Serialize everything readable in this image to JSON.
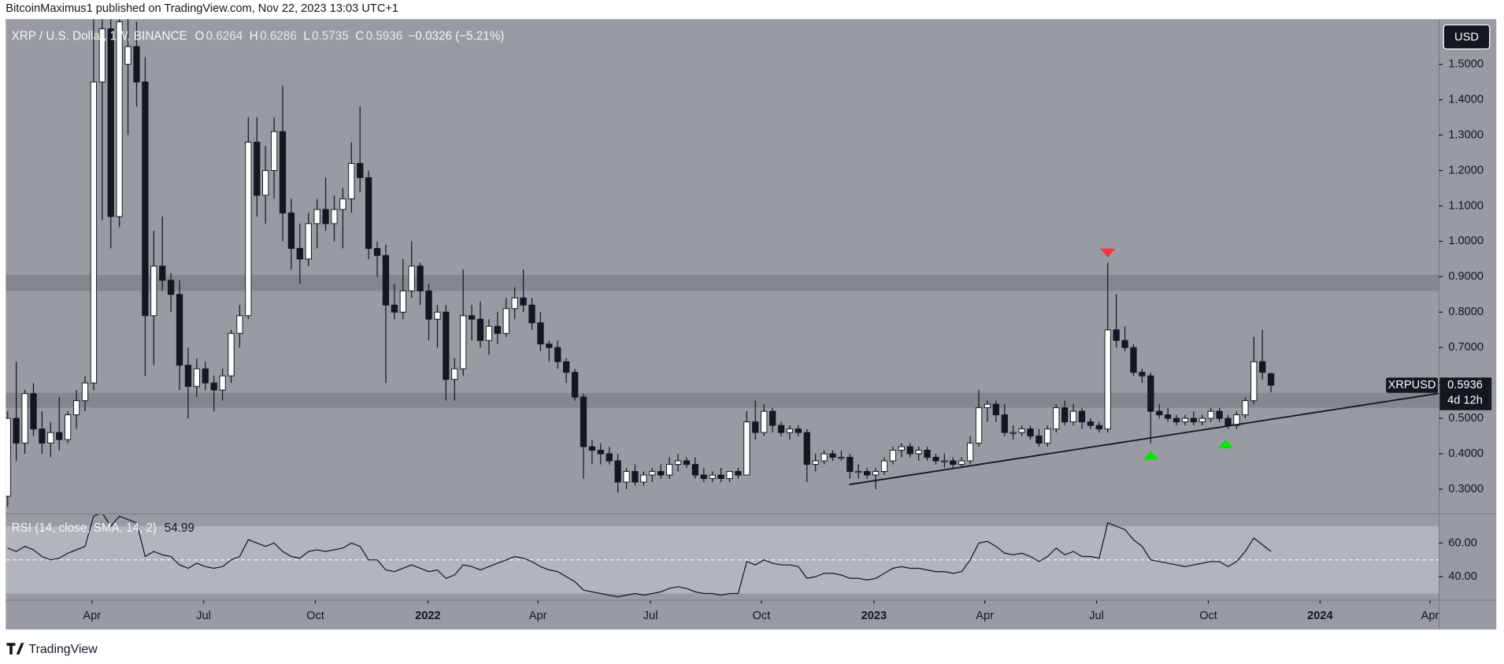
{
  "header": {
    "text": "BitcoinMaximus1 published on TradingView.com, Nov 22, 2023 13:03 UTC+1"
  },
  "footer": {
    "brand": "TradingView"
  },
  "currency_button": "USD",
  "chart_data": [
    {
      "type": "candlestick",
      "title": "XRP / U.S. Dollar, 1W, BINANCE",
      "ohlc_labels": [
        "O",
        "H",
        "L",
        "C"
      ],
      "change_text": "−0.0326 (−5.21%)",
      "symbol_tag": "XRPUSD",
      "countdown": "4d 12h",
      "up_color": "#ffffff",
      "down_color": "#131722",
      "xlim": [
        -0.223,
        166.52
      ],
      "ylim": [
        0.2317,
        1.6274
      ],
      "yticks": [
        {
          "value": 0.3,
          "label": "0.3000"
        },
        {
          "value": 0.4,
          "label": "0.4000"
        },
        {
          "value": 0.5,
          "label": "0.5000"
        },
        {
          "value": 0.6,
          "label": "0.6000"
        },
        {
          "value": 0.7,
          "label": "0.7000"
        },
        {
          "value": 0.8,
          "label": "0.8000"
        },
        {
          "value": 0.9,
          "label": "0.9000"
        },
        {
          "value": 1.0,
          "label": "1.0000"
        },
        {
          "value": 1.1,
          "label": "1.1000"
        },
        {
          "value": 1.2,
          "label": "1.2000"
        },
        {
          "value": 1.3,
          "label": "1.3000"
        },
        {
          "value": 1.4,
          "label": "1.4000"
        },
        {
          "value": 1.5,
          "label": "1.5000"
        }
      ],
      "xticks": [
        {
          "value": 9.8,
          "label": "Apr"
        },
        {
          "value": 22.8,
          "label": "Jul"
        },
        {
          "value": 35.8,
          "label": "Oct"
        },
        {
          "value": 48.9,
          "label": "2022"
        },
        {
          "value": 61.7,
          "label": "Apr"
        },
        {
          "value": 74.8,
          "label": "Jul"
        },
        {
          "value": 87.7,
          "label": "Oct"
        },
        {
          "value": 100.8,
          "label": "2023"
        },
        {
          "value": 113.7,
          "label": "Apr"
        },
        {
          "value": 126.7,
          "label": "Jul"
        },
        {
          "value": 139.7,
          "label": "Oct"
        },
        {
          "value": 152.7,
          "label": "2024"
        },
        {
          "value": 165.5,
          "label": "Apr"
        }
      ],
      "grid": false,
      "zones": [
        [
          0.86,
          0.905
        ],
        [
          0.53,
          0.572
        ]
      ],
      "zone_color": "#85878e",
      "trendline": {
        "x": [
          97.9,
          166.5
        ],
        "y": [
          0.313,
          0.5705
        ],
        "color": "#131722"
      },
      "markers": [
        {
          "direction": "down",
          "color": "#f23645",
          "x": 128,
          "y": 0.955
        },
        {
          "direction": "up",
          "color": "#00e600",
          "x": 133,
          "y": 0.408
        },
        {
          "direction": "up",
          "color": "#00e600",
          "x": 141.7,
          "y": 0.44
        }
      ],
      "ohlc": [
        [
          0.28,
          0.52,
          0.25,
          0.5
        ],
        [
          0.5,
          0.66,
          0.38,
          0.43
        ],
        [
          0.43,
          0.58,
          0.4,
          0.57
        ],
        [
          0.57,
          0.6,
          0.45,
          0.47
        ],
        [
          0.47,
          0.52,
          0.4,
          0.43
        ],
        [
          0.43,
          0.49,
          0.39,
          0.46
        ],
        [
          0.46,
          0.56,
          0.41,
          0.44
        ],
        [
          0.44,
          0.52,
          0.43,
          0.51
        ],
        [
          0.51,
          0.58,
          0.47,
          0.55
        ],
        [
          0.55,
          0.62,
          0.52,
          0.6
        ],
        [
          0.6,
          1.64,
          0.58,
          1.45
        ],
        [
          1.45,
          1.7,
          1.06,
          1.6
        ],
        [
          1.6,
          1.7,
          0.98,
          1.07
        ],
        [
          1.07,
          1.7,
          1.04,
          1.62
        ],
        [
          1.5,
          1.7,
          1.3,
          1.55
        ],
        [
          1.55,
          1.62,
          1.38,
          1.45
        ],
        [
          1.45,
          1.52,
          0.62,
          0.79
        ],
        [
          0.79,
          1.03,
          0.65,
          0.93
        ],
        [
          0.93,
          1.07,
          0.86,
          0.89
        ],
        [
          0.89,
          0.91,
          0.8,
          0.85
        ],
        [
          0.85,
          0.89,
          0.58,
          0.65
        ],
        [
          0.65,
          0.7,
          0.5,
          0.59
        ],
        [
          0.59,
          0.67,
          0.56,
          0.64
        ],
        [
          0.64,
          0.66,
          0.58,
          0.6
        ],
        [
          0.6,
          0.62,
          0.52,
          0.58
        ],
        [
          0.58,
          0.64,
          0.55,
          0.62
        ],
        [
          0.62,
          0.75,
          0.6,
          0.74
        ],
        [
          0.74,
          0.82,
          0.7,
          0.79
        ],
        [
          0.79,
          1.35,
          0.78,
          1.28
        ],
        [
          1.28,
          1.35,
          1.07,
          1.13
        ],
        [
          1.13,
          1.27,
          1.05,
          1.2
        ],
        [
          1.2,
          1.35,
          1.12,
          1.31
        ],
        [
          1.31,
          1.44,
          1.0,
          1.08
        ],
        [
          1.08,
          1.12,
          0.92,
          0.98
        ],
        [
          0.98,
          1.05,
          0.88,
          0.95
        ],
        [
          0.95,
          1.08,
          0.93,
          1.05
        ],
        [
          1.05,
          1.12,
          0.98,
          1.09
        ],
        [
          1.09,
          1.18,
          1.03,
          1.05
        ],
        [
          1.05,
          1.13,
          1.0,
          1.09
        ],
        [
          1.09,
          1.15,
          0.98,
          1.12
        ],
        [
          1.12,
          1.28,
          1.08,
          1.22
        ],
        [
          1.22,
          1.38,
          1.14,
          1.18
        ],
        [
          1.18,
          1.2,
          0.95,
          0.98
        ],
        [
          0.98,
          1.0,
          0.9,
          0.96
        ],
        [
          0.96,
          0.99,
          0.6,
          0.82
        ],
        [
          0.82,
          0.88,
          0.78,
          0.8
        ],
        [
          0.8,
          0.95,
          0.78,
          0.86
        ],
        [
          0.86,
          1.0,
          0.84,
          0.93
        ],
        [
          0.93,
          0.94,
          0.82,
          0.86
        ],
        [
          0.86,
          0.88,
          0.72,
          0.78
        ],
        [
          0.78,
          0.82,
          0.7,
          0.8
        ],
        [
          0.8,
          0.82,
          0.55,
          0.61
        ],
        [
          0.61,
          0.67,
          0.55,
          0.64
        ],
        [
          0.64,
          0.92,
          0.62,
          0.79
        ],
        [
          0.79,
          0.82,
          0.72,
          0.78
        ],
        [
          0.78,
          0.83,
          0.7,
          0.72
        ],
        [
          0.72,
          0.78,
          0.68,
          0.76
        ],
        [
          0.76,
          0.8,
          0.71,
          0.74
        ],
        [
          0.74,
          0.84,
          0.73,
          0.81
        ],
        [
          0.81,
          0.87,
          0.78,
          0.84
        ],
        [
          0.84,
          0.92,
          0.8,
          0.82
        ],
        [
          0.82,
          0.84,
          0.75,
          0.77
        ],
        [
          0.77,
          0.8,
          0.69,
          0.71
        ],
        [
          0.71,
          0.72,
          0.66,
          0.7
        ],
        [
          0.7,
          0.72,
          0.64,
          0.66
        ],
        [
          0.66,
          0.67,
          0.6,
          0.63
        ],
        [
          0.63,
          0.64,
          0.55,
          0.56
        ],
        [
          0.56,
          0.57,
          0.33,
          0.42
        ],
        [
          0.42,
          0.44,
          0.37,
          0.41
        ],
        [
          0.41,
          0.43,
          0.37,
          0.4
        ],
        [
          0.4,
          0.42,
          0.37,
          0.38
        ],
        [
          0.38,
          0.4,
          0.29,
          0.32
        ],
        [
          0.32,
          0.36,
          0.3,
          0.35
        ],
        [
          0.35,
          0.37,
          0.31,
          0.32
        ],
        [
          0.32,
          0.35,
          0.31,
          0.34
        ],
        [
          0.34,
          0.36,
          0.32,
          0.35
        ],
        [
          0.35,
          0.37,
          0.33,
          0.34
        ],
        [
          0.34,
          0.39,
          0.33,
          0.37
        ],
        [
          0.37,
          0.4,
          0.35,
          0.38
        ],
        [
          0.38,
          0.39,
          0.36,
          0.37
        ],
        [
          0.37,
          0.39,
          0.33,
          0.34
        ],
        [
          0.34,
          0.36,
          0.32,
          0.33
        ],
        [
          0.33,
          0.35,
          0.32,
          0.34
        ],
        [
          0.34,
          0.36,
          0.32,
          0.33
        ],
        [
          0.33,
          0.35,
          0.32,
          0.35
        ],
        [
          0.35,
          0.36,
          0.33,
          0.34
        ],
        [
          0.34,
          0.52,
          0.34,
          0.49
        ],
        [
          0.49,
          0.55,
          0.44,
          0.46
        ],
        [
          0.46,
          0.54,
          0.45,
          0.52
        ],
        [
          0.52,
          0.53,
          0.46,
          0.48
        ],
        [
          0.48,
          0.49,
          0.45,
          0.46
        ],
        [
          0.46,
          0.48,
          0.44,
          0.47
        ],
        [
          0.47,
          0.48,
          0.45,
          0.46
        ],
        [
          0.46,
          0.47,
          0.32,
          0.37
        ],
        [
          0.37,
          0.4,
          0.35,
          0.38
        ],
        [
          0.38,
          0.41,
          0.37,
          0.4
        ],
        [
          0.4,
          0.41,
          0.38,
          0.39
        ],
        [
          0.39,
          0.41,
          0.38,
          0.39
        ],
        [
          0.39,
          0.4,
          0.33,
          0.35
        ],
        [
          0.35,
          0.37,
          0.33,
          0.35
        ],
        [
          0.35,
          0.36,
          0.33,
          0.34
        ],
        [
          0.34,
          0.36,
          0.3,
          0.35
        ],
        [
          0.35,
          0.39,
          0.34,
          0.38
        ],
        [
          0.38,
          0.42,
          0.37,
          0.41
        ],
        [
          0.41,
          0.43,
          0.39,
          0.42
        ],
        [
          0.42,
          0.43,
          0.39,
          0.4
        ],
        [
          0.4,
          0.42,
          0.38,
          0.41
        ],
        [
          0.41,
          0.42,
          0.38,
          0.39
        ],
        [
          0.39,
          0.4,
          0.37,
          0.38
        ],
        [
          0.38,
          0.4,
          0.36,
          0.38
        ],
        [
          0.38,
          0.39,
          0.36,
          0.37
        ],
        [
          0.37,
          0.39,
          0.36,
          0.38
        ],
        [
          0.38,
          0.45,
          0.37,
          0.43
        ],
        [
          0.43,
          0.58,
          0.42,
          0.53
        ],
        [
          0.53,
          0.55,
          0.49,
          0.54
        ],
        [
          0.54,
          0.55,
          0.49,
          0.51
        ],
        [
          0.51,
          0.54,
          0.45,
          0.46
        ],
        [
          0.46,
          0.48,
          0.44,
          0.46
        ],
        [
          0.46,
          0.48,
          0.45,
          0.47
        ],
        [
          0.47,
          0.48,
          0.44,
          0.45
        ],
        [
          0.45,
          0.47,
          0.42,
          0.43
        ],
        [
          0.43,
          0.48,
          0.42,
          0.47
        ],
        [
          0.47,
          0.54,
          0.46,
          0.53
        ],
        [
          0.53,
          0.55,
          0.48,
          0.49
        ],
        [
          0.49,
          0.54,
          0.48,
          0.52
        ],
        [
          0.52,
          0.53,
          0.47,
          0.49
        ],
        [
          0.49,
          0.5,
          0.47,
          0.48
        ],
        [
          0.48,
          0.49,
          0.46,
          0.47
        ],
        [
          0.47,
          0.94,
          0.46,
          0.75
        ],
        [
          0.75,
          0.85,
          0.7,
          0.72
        ],
        [
          0.72,
          0.76,
          0.69,
          0.7
        ],
        [
          0.7,
          0.71,
          0.62,
          0.63
        ],
        [
          0.63,
          0.64,
          0.6,
          0.62
        ],
        [
          0.62,
          0.63,
          0.43,
          0.52
        ],
        [
          0.52,
          0.54,
          0.5,
          0.51
        ],
        [
          0.51,
          0.53,
          0.49,
          0.5
        ],
        [
          0.5,
          0.51,
          0.48,
          0.49
        ],
        [
          0.49,
          0.51,
          0.48,
          0.5
        ],
        [
          0.5,
          0.52,
          0.48,
          0.49
        ],
        [
          0.49,
          0.51,
          0.48,
          0.5
        ],
        [
          0.5,
          0.53,
          0.49,
          0.52
        ],
        [
          0.52,
          0.53,
          0.49,
          0.5
        ],
        [
          0.5,
          0.51,
          0.47,
          0.48
        ],
        [
          0.48,
          0.52,
          0.47,
          0.51
        ],
        [
          0.51,
          0.56,
          0.5,
          0.55
        ],
        [
          0.55,
          0.73,
          0.54,
          0.66
        ],
        [
          0.66,
          0.75,
          0.61,
          0.63
        ],
        [
          0.6264,
          0.6286,
          0.5735,
          0.5936
        ]
      ]
    },
    {
      "type": "line",
      "title": "RSI (14, close, SMA, 14, 2)",
      "color": "#131722",
      "xlim": [
        -0.223,
        166.52
      ],
      "ylim": [
        26.3,
        77.1
      ],
      "yticks": [
        {
          "value": 40,
          "label": "40.00"
        },
        {
          "value": 60,
          "label": "60.00"
        }
      ],
      "bands": [
        30,
        70
      ],
      "band_color": "#b2b5bc",
      "midline": 50,
      "values": [
        57,
        55,
        58,
        56,
        52,
        50,
        51,
        54,
        56,
        58,
        76,
        78,
        70,
        76,
        74,
        72,
        52,
        55,
        53,
        52,
        47,
        45,
        48,
        46,
        45,
        46,
        50,
        52,
        62,
        60,
        58,
        60,
        55,
        52,
        51,
        55,
        56,
        55,
        56,
        57,
        60,
        58,
        50,
        50,
        44,
        43,
        45,
        47,
        45,
        43,
        44,
        39,
        41,
        47,
        46,
        44,
        46,
        48,
        50,
        52,
        51,
        49,
        46,
        44,
        43,
        40,
        37,
        32,
        31,
        30,
        29,
        28,
        29,
        30,
        29,
        30,
        31,
        33,
        34,
        33,
        31,
        30,
        30,
        29,
        30,
        30,
        49,
        47,
        50,
        48,
        47,
        47,
        46,
        39,
        40,
        42,
        42,
        41,
        39,
        39,
        38,
        39,
        42,
        45,
        46,
        45,
        45,
        44,
        43,
        43,
        42,
        43,
        50,
        60,
        61,
        58,
        54,
        53,
        54,
        52,
        49,
        52,
        57,
        53,
        55,
        52,
        52,
        51,
        72,
        70,
        68,
        62,
        58,
        50,
        49,
        48,
        47,
        46,
        47,
        48,
        49,
        49,
        46,
        49,
        55,
        63,
        59,
        54.99
      ]
    }
  ]
}
